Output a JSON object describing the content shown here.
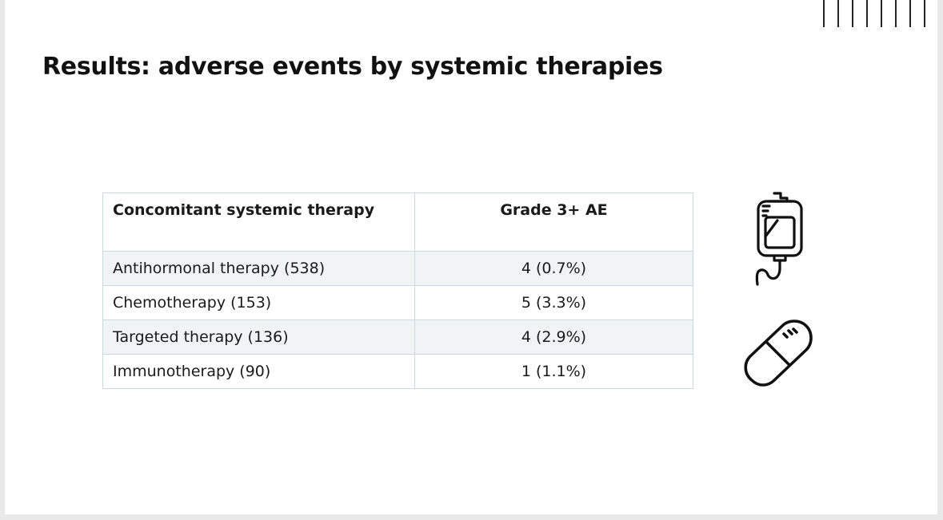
{
  "slide": {
    "title": "Results: adverse events by systemic therapies"
  },
  "table": {
    "headers": [
      "Concomitant systemic therapy",
      "Grade 3+ AE"
    ],
    "rows": [
      [
        "Antihormonal therapy (538)",
        "4 (0.7%)"
      ],
      [
        "Chemotherapy (153)",
        "5 (3.3%)"
      ],
      [
        "Targeted therapy (136)",
        "4 (2.9%)"
      ],
      [
        "Immunotherapy (90)",
        "1 (1.1%)"
      ]
    ]
  },
  "icons": {
    "iv": "iv-bag-icon",
    "pill": "pill-icon",
    "decor": "vertical-bars-decoration"
  },
  "colors": {
    "table_border": "#c9d9df",
    "row_shade": "#f0f4f5",
    "text": "#111111"
  }
}
